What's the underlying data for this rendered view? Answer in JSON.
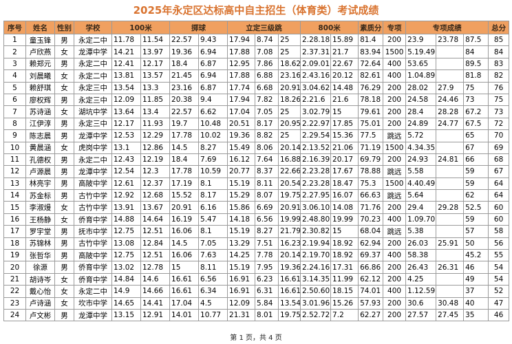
{
  "header": {
    "title": "2025年永定区达标高中自主招生（体育类）考试成绩"
  },
  "table": {
    "columns": [
      {
        "label": "序号",
        "span": 1
      },
      {
        "label": "姓名",
        "span": 1
      },
      {
        "label": "性别",
        "span": 1
      },
      {
        "label": "学校",
        "span": 1
      },
      {
        "label": "100米",
        "span": 2
      },
      {
        "label": "掷球",
        "span": 2
      },
      {
        "label": "立定三级跳",
        "span": 3
      },
      {
        "label": "800米",
        "span": 2
      },
      {
        "label": "素质分",
        "span": 1
      },
      {
        "label": "专项",
        "span": 1
      },
      {
        "label": "专项成绩",
        "span": 3
      },
      {
        "label": "总分",
        "span": 1
      }
    ],
    "rows": [
      [
        "1",
        "童玉锋",
        "男",
        "永定二中",
        "11.78",
        "11.54",
        "22.57",
        "9.43",
        "17.94",
        "8.74",
        "25",
        "2.28.18",
        "15.89",
        "81.4",
        "200",
        "23.9",
        "23.78",
        "87.5",
        "85"
      ],
      [
        "2",
        "卢欣燕",
        "女",
        "龙潭中学",
        "14.21",
        "13.97",
        "19.36",
        "6.94",
        "17.88",
        "7.08",
        "25",
        "2.37.31",
        "21.7",
        "83.94",
        "1500",
        "5.19.49",
        null,
        "84",
        "84"
      ],
      [
        "3",
        "赖郑元",
        "男",
        "永定二中",
        "12.41",
        "12.17",
        "18.4",
        "6.87",
        "12.95",
        "7.86",
        "18.62",
        "2.09.01",
        "22.67",
        "72.64",
        "400",
        "53.65",
        null,
        "89.5",
        "83"
      ],
      [
        "4",
        "刘晨曦",
        "女",
        "永定二中",
        "13.81",
        "13.57",
        "21.45",
        "6.94",
        "17.88",
        "6.88",
        "23.16",
        "2.43.16",
        "20.12",
        "82.61",
        "400",
        "1.04.89",
        null,
        "81.8",
        "82"
      ],
      [
        "5",
        "赖舒琪",
        "女",
        "永定三中",
        "13.54",
        "13.3",
        "23.16",
        "6.87",
        "17.74",
        "6.68",
        "20.91",
        "3.04.62",
        "14.48",
        "76.29",
        "200",
        "28.02",
        "27.9",
        "75",
        "76"
      ],
      [
        "6",
        "廖权辉",
        "男",
        "永定三中",
        "12.09",
        "11.85",
        "20.38",
        "9.4",
        "17.94",
        "7.82",
        "18.26",
        "2.21.6",
        "21.6",
        "78.18",
        "200",
        "24.58",
        "24.46",
        "73",
        "75"
      ],
      [
        "7",
        "苏诗涵",
        "女",
        "湖坑中学",
        "13.64",
        "13.4",
        "22.57",
        "6.62",
        "17.04",
        "7.05",
        "25",
        "3.02.79",
        "15",
        "79.61",
        "200",
        "28.4",
        "28.28",
        "67.2",
        "73"
      ],
      [
        "8",
        "江伊淳",
        "男",
        "永定三中",
        "12.17",
        "11.93",
        "19.7",
        "10.48",
        "20.51",
        "8.17",
        "20.95",
        "2.22.97",
        "17.85",
        "75.01",
        "200",
        "24.89",
        "24.77",
        "67.5",
        "72"
      ],
      [
        "9",
        "陈志晨",
        "男",
        "龙潭中学",
        "12.53",
        "12.29",
        "17.78",
        "10.02",
        "19.36",
        "8.82",
        "25",
        "2.29.54",
        "15.36",
        "77.5",
        "跳远",
        "5.72",
        null,
        "65",
        "70"
      ],
      [
        "10",
        "黄晨涵",
        "女",
        "虎岗中学",
        "13.1",
        "12.86",
        "14.5",
        "8.27",
        "15.49",
        "8.06",
        "20.14",
        "2.13.52",
        "21.06",
        "71.19",
        "1500",
        "4.34.35",
        null,
        "67",
        "69"
      ],
      [
        "11",
        "孔德权",
        "男",
        "永定二中",
        "12.43",
        "12.19",
        "18.4",
        "7.69",
        "16.12",
        "7.64",
        "16.88",
        "2.16.39",
        "20.17",
        "69.79",
        "200",
        "24.93",
        "24.81",
        "66",
        "68"
      ],
      [
        "12",
        "卢源晨",
        "男",
        "龙潭中学",
        "12.54",
        "12.3",
        "17.78",
        "10.59",
        "20.77",
        "8.37",
        "22.66",
        "2.23.28",
        "17.67",
        "78.88",
        "跳远",
        "5.58",
        null,
        "59",
        "67"
      ],
      [
        "13",
        "林亮宇",
        "男",
        "高陂中学",
        "12.61",
        "12.37",
        "17.19",
        "8.1",
        "15.19",
        "8.11",
        "20.54",
        "2.23.28",
        "18.47",
        "75.3",
        "1500",
        "4.40.49",
        null,
        "59",
        "64"
      ],
      [
        "14",
        "苏金标",
        "男",
        "古竹中学",
        "12.92",
        "12.68",
        "15.52",
        "8.17",
        "15.29",
        "8.07",
        "19.75",
        "2.27.95",
        "16.07",
        "66.63",
        "跳远",
        "5.64",
        null,
        "62",
        "64"
      ],
      [
        "15",
        "李淑熳",
        "女",
        "古竹中学",
        "13.91",
        "13.67",
        "20.91",
        "6.16",
        "15.86",
        "6.69",
        "20.91",
        "3.06.10",
        "14.08",
        "71.76",
        "200",
        "29.4",
        "29.28",
        "52.5",
        "60"
      ],
      [
        "16",
        "王杨静",
        "女",
        "侨育中学",
        "14.88",
        "14.64",
        "16.19",
        "5.47",
        "14.18",
        "6.56",
        "19.99",
        "2.48.80",
        "19.99",
        "70.23",
        "400",
        "1.09.70",
        null,
        "59",
        "60"
      ],
      [
        "17",
        "罗宇堂",
        "男",
        "抚市中学",
        "12.75",
        "12.51",
        "16.06",
        "8.1",
        "15.19",
        "8.27",
        "21.79",
        "2.30.82",
        "15",
        "68.04",
        "跳远",
        "5.38",
        null,
        "57",
        "58"
      ],
      [
        "18",
        "苏锦林",
        "男",
        "古竹中学",
        "13.08",
        "12.84",
        "14.5",
        "7.05",
        "13.29",
        "7.51",
        "16.23",
        "2.19.94",
        "18.92",
        "62.94",
        "200",
        "26.03",
        "25.91",
        "50",
        "56"
      ],
      [
        "19",
        "张哲华",
        "男",
        "高陂中学",
        "12.75",
        "12.51",
        "16.06",
        "7.63",
        "14.25",
        "7.78",
        "20.14",
        "2.19.70",
        "18.92",
        "69.37",
        "400",
        "58.38",
        null,
        "45.2",
        "55"
      ],
      [
        "20",
        "徐源",
        "男",
        "侨育中学",
        "13.02",
        "12.78",
        "15",
        "8.11",
        "15.19",
        "7.95",
        "19.36",
        "2.24.16",
        "17.31",
        "66.86",
        "200",
        "26.43",
        "26.31",
        "46",
        "54"
      ],
      [
        "21",
        "胡诗岑",
        "女",
        "侨育中学",
        "14.84",
        "14.6",
        "16.61",
        "6.56",
        "16.91",
        "6.23",
        "16.61",
        "3.14.35",
        "11.99",
        "62.12",
        "200",
        "4.25",
        null,
        "49",
        "54"
      ],
      [
        "22",
        "戴心怡",
        "女",
        "永定二中",
        "14.9",
        "14.66",
        "16.61",
        "6.34",
        "16.91",
        "6.31",
        "16.61",
        "2.50.60",
        "18.15",
        "74.01",
        "400",
        "1.12.59",
        null,
        "37",
        "52"
      ],
      [
        "23",
        "卢诗涵",
        "女",
        "坎市中学",
        "14.65",
        "14.41",
        "17.04",
        "4.5",
        "12.09",
        "5.84",
        "13.54",
        "3.01.96",
        "15.26",
        "57.93",
        "200",
        "30.6",
        "30.48",
        "40",
        "47"
      ],
      [
        "24",
        "卢文彬",
        "男",
        "龙潭中学",
        "13.15",
        "12.91",
        "14.01",
        "10.77",
        "21.31",
        "8.01",
        "19.75",
        "2.52.72",
        "7.2",
        "62.27",
        "200",
        "27.57",
        "27.45",
        "35",
        "46"
      ]
    ]
  },
  "footer": {
    "text": "第 1 页，共 4 页"
  }
}
